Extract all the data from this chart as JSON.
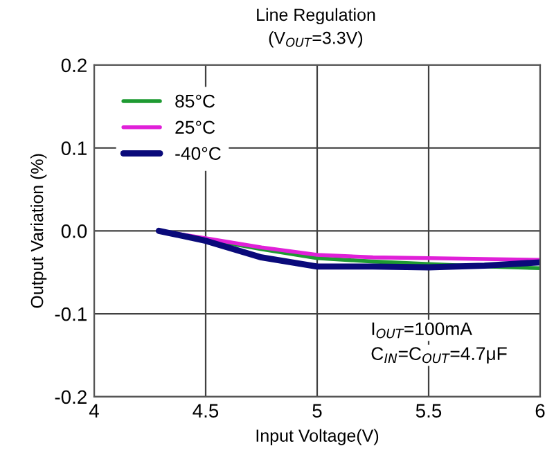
{
  "chart_data": {
    "type": "line",
    "title": "Line Regulation",
    "subtitle": "(V$_{OUT}$=3.3V)",
    "xlabel": "Input Voltage(V)",
    "ylabel": "Output Variation (%)",
    "x": [
      4.29,
      4.5,
      4.75,
      5,
      5.25,
      5.5,
      5.75,
      6
    ],
    "series": [
      {
        "name": "85°C",
        "color": "#1e9a32",
        "values": [
          0,
          -0.01,
          -0.022,
          -0.033,
          -0.037,
          -0.04,
          -0.043,
          -0.045
        ]
      },
      {
        "name": "25°C",
        "color": "#e020d8",
        "values": [
          0,
          -0.009,
          -0.02,
          -0.029,
          -0.032,
          -0.033,
          -0.034,
          -0.035
        ]
      },
      {
        "name": "-40°C",
        "color": "#0a0a7a",
        "values": [
          0,
          -0.012,
          -0.032,
          -0.043,
          -0.043,
          -0.044,
          -0.042,
          -0.038
        ]
      }
    ],
    "xlim": [
      4,
      6
    ],
    "ylim": [
      -0.2,
      0.2
    ],
    "xticks": [
      4,
      4.5,
      5,
      5.5,
      6
    ],
    "yticks": [
      {
        "value": -0.2,
        "label": "-0.2"
      },
      {
        "value": -0.1,
        "label": "-0.1"
      },
      {
        "value": 0,
        "label": "0.0"
      },
      0.1,
      0.2
    ],
    "annotations": [
      "I$_{OUT}$=100mA",
      "C$_{IN}$=C$_{OUT}$=4.7μF"
    ],
    "grid": true,
    "legend": "top left",
    "marker": "none",
    "line_style": "solid"
  }
}
